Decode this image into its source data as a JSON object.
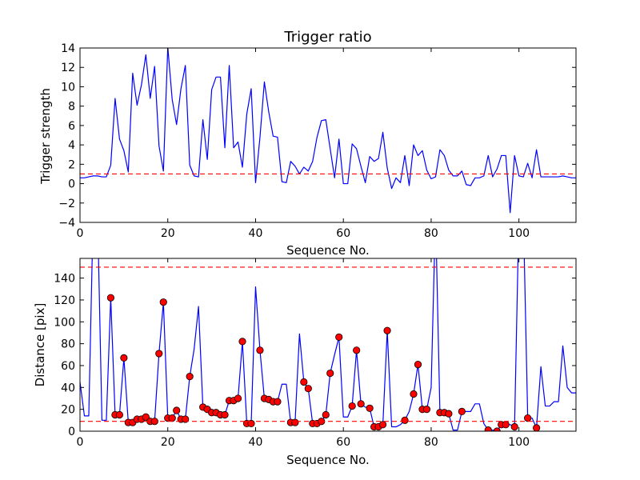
{
  "chart_data": [
    {
      "type": "line",
      "title": "Trigger ratio",
      "xlabel": "Sequence No.",
      "ylabel": "Trigger strength",
      "xlim": [
        0,
        113
      ],
      "ylim": [
        -4,
        14
      ],
      "xticks": [
        0,
        20,
        40,
        60,
        80,
        100
      ],
      "yticks": [
        -4,
        -2,
        0,
        2,
        4,
        6,
        8,
        10,
        12,
        14
      ],
      "grid": false,
      "series": [
        {
          "color": "#0000ff",
          "x": [
            0,
            1,
            2,
            3,
            4,
            5,
            6,
            7,
            8,
            9,
            10,
            11,
            12,
            13,
            14,
            15,
            16,
            17,
            18,
            19,
            20,
            21,
            22,
            23,
            24,
            25,
            26,
            27,
            28,
            29,
            30,
            31,
            32,
            33,
            34,
            35,
            36,
            37,
            38,
            39,
            40,
            41,
            42,
            43,
            44,
            45,
            46,
            47,
            48,
            49,
            50,
            51,
            52,
            53,
            54,
            55,
            56,
            57,
            58,
            59,
            60,
            61,
            62,
            63,
            64,
            65,
            66,
            67,
            68,
            69,
            70,
            71,
            72,
            73,
            74,
            75,
            76,
            77,
            78,
            79,
            80,
            81,
            82,
            83,
            84,
            85,
            86,
            87,
            88,
            89,
            90,
            91,
            92,
            93,
            94,
            95,
            96,
            97,
            98,
            99,
            100,
            101,
            102,
            103,
            104,
            105,
            106,
            107,
            108,
            109,
            110,
            111,
            112,
            113
          ],
          "y": [
            0.6,
            0.6,
            0.7,
            0.8,
            0.8,
            0.7,
            0.7,
            1.9,
            8.8,
            4.6,
            3.4,
            1.2,
            11.4,
            8.1,
            10.2,
            13.3,
            8.8,
            12.1,
            3.9,
            1.3,
            14.1,
            8.7,
            6.1,
            9.8,
            12.2,
            1.9,
            0.8,
            0.7,
            6.6,
            2.5,
            9.7,
            11.0,
            11.0,
            3.7,
            12.2,
            3.7,
            4.3,
            1.7,
            7.2,
            9.8,
            0.1,
            4.8,
            10.5,
            7.4,
            4.9,
            4.8,
            0.2,
            0.1,
            2.3,
            1.8,
            1.0,
            1.7,
            1.3,
            2.3,
            4.8,
            6.5,
            6.6,
            3.6,
            0.6,
            4.6,
            0.0,
            0.0,
            4.1,
            3.6,
            1.8,
            0.1,
            2.8,
            2.3,
            2.6,
            5.3,
            1.6,
            -0.5,
            0.6,
            0.1,
            2.9,
            -0.2,
            4.0,
            2.9,
            3.4,
            1.4,
            0.5,
            0.7,
            3.5,
            2.9,
            1.4,
            0.8,
            0.8,
            1.3,
            -0.1,
            -0.2,
            0.6,
            0.6,
            0.8,
            2.9,
            0.7,
            1.5,
            2.9,
            2.9,
            -3.0,
            2.9,
            0.8,
            0.7,
            2.1,
            0.6,
            3.5,
            0.7,
            0.7,
            0.7,
            0.7,
            0.7,
            0.8,
            0.7,
            0.6,
            0.6
          ]
        },
        {
          "style": "dashed",
          "color": "#ff0000",
          "x": [
            0,
            113
          ],
          "y": [
            1,
            1
          ]
        }
      ]
    },
    {
      "type": "line",
      "xlabel": "Sequence No.",
      "ylabel": "Distance [pix]",
      "xlim": [
        0,
        113
      ],
      "ylim": [
        0,
        158
      ],
      "xticks": [
        0,
        20,
        40,
        60,
        80,
        100
      ],
      "yticks": [
        0,
        20,
        40,
        60,
        80,
        100,
        120,
        140
      ],
      "grid": false,
      "series": [
        {
          "color": "#0000ff",
          "x": [
            0,
            1,
            2,
            3,
            4,
            5,
            6,
            7,
            8,
            9,
            10,
            11,
            12,
            13,
            14,
            15,
            16,
            17,
            18,
            19,
            20,
            21,
            22,
            23,
            24,
            25,
            26,
            27,
            28,
            29,
            30,
            31,
            32,
            33,
            34,
            35,
            36,
            37,
            38,
            39,
            40,
            41,
            42,
            43,
            44,
            45,
            46,
            47,
            48,
            49,
            50,
            51,
            52,
            53,
            54,
            55,
            56,
            57,
            58,
            59,
            60,
            61,
            62,
            63,
            64,
            65,
            66,
            67,
            68,
            69,
            70,
            71,
            72,
            73,
            74,
            75,
            76,
            77,
            78,
            79,
            80,
            81,
            82,
            83,
            84,
            85,
            86,
            87,
            88,
            89,
            90,
            91,
            92,
            93,
            94,
            95,
            96,
            97,
            98,
            99,
            100,
            101,
            102,
            103,
            104,
            105,
            106,
            107,
            108,
            109,
            110,
            111,
            112,
            113
          ],
          "y": [
            45,
            14,
            14,
            200,
            200,
            10,
            10,
            122,
            15,
            15,
            67,
            8,
            8,
            11,
            11,
            13,
            9,
            9,
            71,
            118,
            12,
            12,
            19,
            11,
            11,
            50,
            75,
            114,
            22,
            20,
            17,
            17,
            15,
            15,
            28,
            28,
            30,
            82,
            7,
            7,
            132,
            74,
            30,
            29,
            27,
            27,
            43,
            43,
            8,
            8,
            89,
            45,
            39,
            7,
            7,
            9,
            15,
            53,
            70,
            86,
            13,
            13,
            23,
            74,
            25,
            22,
            21,
            4,
            4,
            6,
            92,
            4,
            4,
            6,
            10,
            18,
            34,
            61,
            20,
            20,
            40,
            200,
            17,
            17,
            16,
            1,
            1,
            18,
            18,
            18,
            25,
            25,
            7,
            1,
            1,
            0,
            6,
            6,
            6,
            4,
            200,
            200,
            12,
            12,
            3,
            59,
            23,
            23,
            27,
            27,
            78,
            40,
            35,
            35
          ]
        },
        {
          "marker": "circle",
          "color": "#ff0000",
          "x": [
            7,
            8,
            9,
            10,
            11,
            12,
            13,
            14,
            15,
            16,
            17,
            18,
            19,
            20,
            21,
            22,
            23,
            24,
            25,
            28,
            29,
            30,
            31,
            32,
            33,
            34,
            35,
            36,
            37,
            38,
            39,
            41,
            42,
            43,
            44,
            45,
            48,
            49,
            51,
            52,
            53,
            54,
            55,
            56,
            57,
            59,
            62,
            63,
            64,
            66,
            67,
            68,
            69,
            70,
            74,
            76,
            77,
            78,
            79,
            82,
            83,
            84,
            87,
            93,
            95,
            96,
            97,
            99,
            102,
            104
          ],
          "y": [
            122,
            15,
            15,
            67,
            8,
            8,
            11,
            11,
            13,
            9,
            9,
            71,
            118,
            12,
            12,
            19,
            11,
            11,
            50,
            22,
            20,
            17,
            17,
            15,
            15,
            28,
            28,
            30,
            82,
            7,
            7,
            74,
            30,
            29,
            27,
            27,
            8,
            8,
            45,
            39,
            7,
            7,
            9,
            15,
            53,
            86,
            23,
            74,
            25,
            21,
            4,
            4,
            6,
            92,
            10,
            34,
            61,
            20,
            20,
            17,
            17,
            16,
            18,
            1,
            0,
            6,
            6,
            4,
            12,
            3
          ]
        },
        {
          "style": "dashed",
          "color": "#ff0000",
          "x": [
            0,
            113
          ],
          "y": [
            150,
            150
          ]
        },
        {
          "style": "dashed",
          "color": "#ff0000",
          "x": [
            0,
            113
          ],
          "y": [
            9,
            9
          ]
        }
      ]
    }
  ]
}
